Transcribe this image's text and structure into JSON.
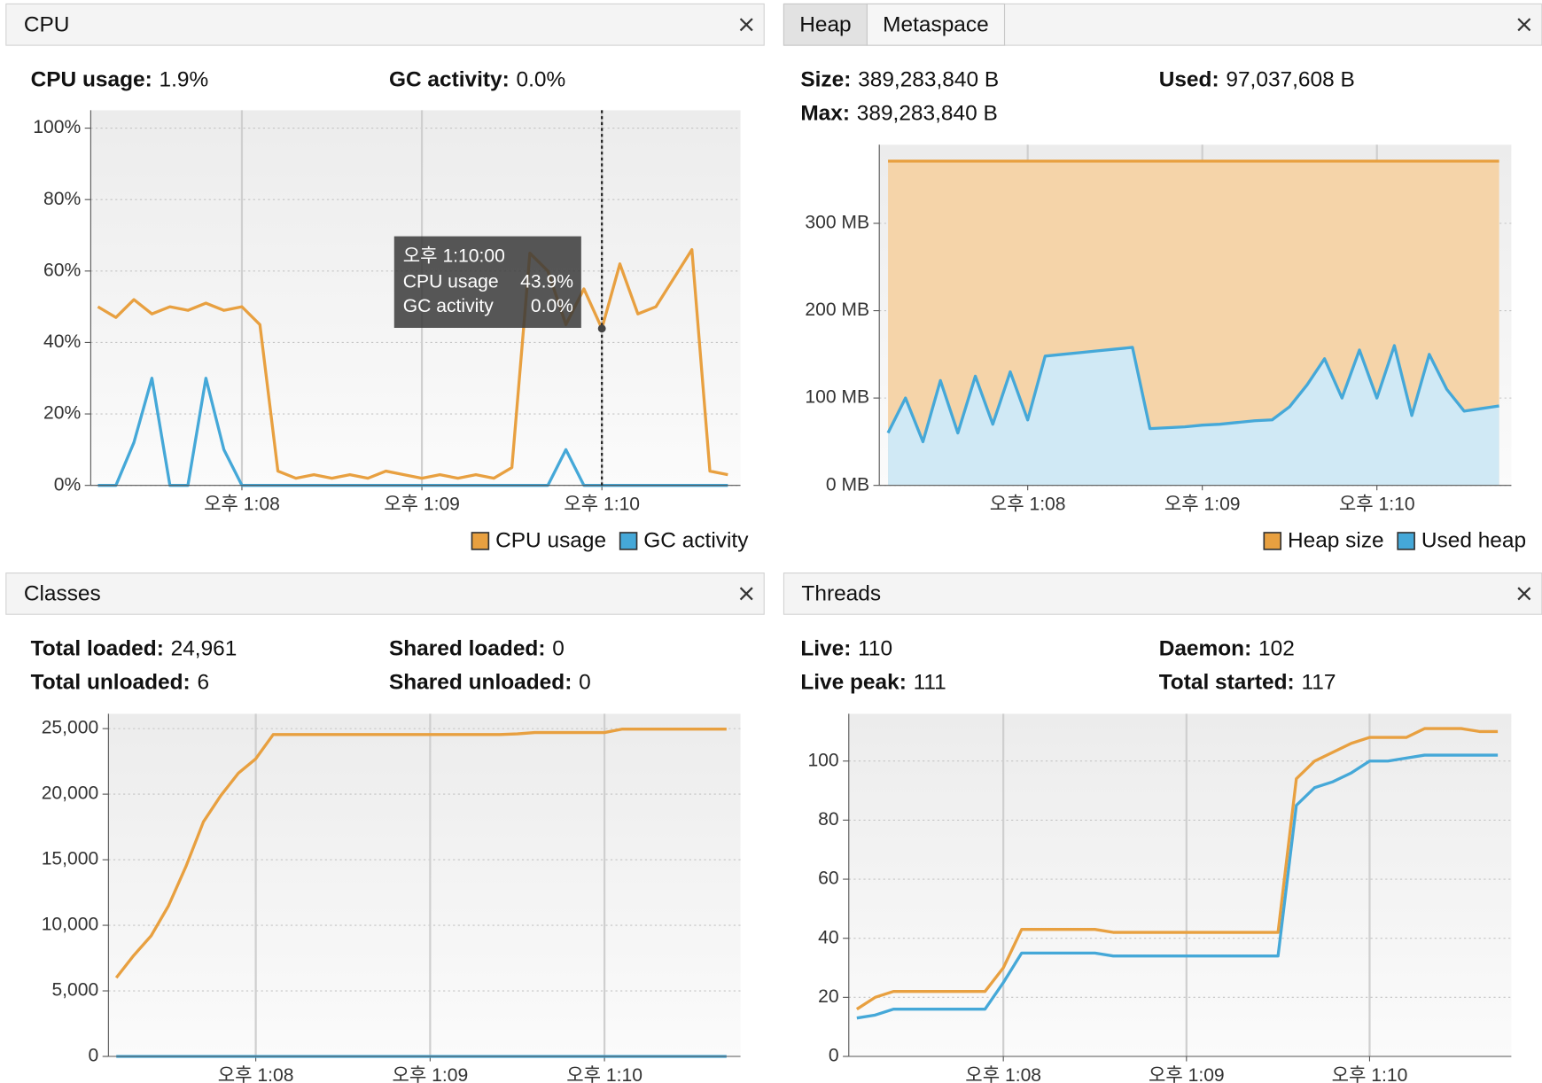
{
  "chart_data": [
    {
      "type": "line",
      "title": "CPU",
      "stats": [
        {
          "label": "CPU usage:",
          "value": "1.9%"
        },
        {
          "label": "GC activity:",
          "value": "0.0%"
        }
      ],
      "x": [
        67.2,
        67.3,
        67.4,
        67.5,
        67.6,
        67.7,
        67.8,
        67.9,
        68,
        68.1,
        68.2,
        68.3,
        68.4,
        68.5,
        68.6,
        68.7,
        68.8,
        68.9,
        69,
        69.1,
        69.2,
        69.3,
        69.4,
        69.5,
        69.6,
        69.7,
        69.8,
        69.9,
        70,
        70.1,
        70.2,
        70.3,
        70.4,
        70.5,
        70.6,
        70.7
      ],
      "series": [
        {
          "name": "CPU usage",
          "color": "#e8a040",
          "values": [
            50,
            47,
            52,
            48,
            50,
            49,
            51,
            49,
            50,
            45,
            4,
            2,
            3,
            2,
            3,
            2,
            4,
            3,
            2,
            3,
            2,
            3,
            2,
            5,
            65,
            60,
            45,
            55,
            43.9,
            62,
            48,
            50,
            58,
            66,
            4,
            3
          ]
        },
        {
          "name": "GC activity",
          "color": "#45a8d8",
          "values": [
            0,
            0,
            12,
            30,
            0,
            0,
            30,
            10,
            0,
            0,
            0,
            0,
            0,
            0,
            0,
            0,
            0,
            0,
            0,
            0,
            0,
            0,
            0,
            0,
            0,
            0,
            10,
            0,
            0,
            0,
            0,
            0,
            0,
            0,
            0,
            0
          ]
        }
      ],
      "xlim": [
        67.16,
        70.77
      ],
      "xticks": [
        {
          "value": 68,
          "label": "오후 1:08"
        },
        {
          "value": 69,
          "label": "오후 1:09"
        },
        {
          "value": 70,
          "label": "오후 1:10"
        }
      ],
      "ylim": [
        0,
        105
      ],
      "yticks": [
        {
          "value": 0,
          "label": "0%"
        },
        {
          "value": 20,
          "label": "20%"
        },
        {
          "value": 40,
          "label": "40%"
        },
        {
          "value": 60,
          "label": "60%"
        },
        {
          "value": 80,
          "label": "80%"
        },
        {
          "value": 100,
          "label": "100%"
        }
      ],
      "grid": true,
      "legend": "bottom-right",
      "tooltip": {
        "x": 70,
        "title": "오후 1:10:00",
        "rows": [
          {
            "name": "CPU usage",
            "value": 43.9,
            "label": "43.9%"
          },
          {
            "name": "GC activity",
            "value": 0,
            "label": "0.0%"
          }
        ]
      }
    },
    {
      "type": "area",
      "tabs": [
        "Heap",
        "Metaspace"
      ],
      "stats": [
        {
          "label": "Size:",
          "value": "389,283,840 B"
        },
        {
          "label": "Used:",
          "value": "97,037,608 B"
        },
        {
          "label": "Max:",
          "value": "389,283,840 B"
        }
      ],
      "x": [
        67.2,
        67.3,
        67.4,
        67.5,
        67.6,
        67.7,
        67.8,
        67.9,
        68,
        68.1,
        68.2,
        68.3,
        68.4,
        68.5,
        68.6,
        68.7,
        68.8,
        68.9,
        69,
        69.1,
        69.2,
        69.3,
        69.4,
        69.5,
        69.6,
        69.7,
        69.8,
        69.9,
        70,
        70.1,
        70.2,
        70.3,
        70.4,
        70.5,
        70.6,
        70.7
      ],
      "series": [
        {
          "name": "Heap size",
          "color": "#e8a040",
          "values": [
            371.25,
            371.25,
            371.25,
            371.25,
            371.25,
            371.25,
            371.25,
            371.25,
            371.25,
            371.25,
            371.25,
            371.25,
            371.25,
            371.25,
            371.25,
            371.25,
            371.25,
            371.25,
            371.25,
            371.25,
            371.25,
            371.25,
            371.25,
            371.25,
            371.25,
            371.25,
            371.25,
            371.25,
            371.25,
            371.25,
            371.25,
            371.25,
            371.25,
            371.25,
            371.25,
            371.25
          ]
        },
        {
          "name": "Used heap",
          "color": "#45a8d8",
          "values": [
            60,
            100,
            50,
            120,
            60,
            125,
            70,
            130,
            75,
            148,
            150,
            152,
            154,
            156,
            158,
            65,
            66,
            67,
            69,
            70,
            72,
            74,
            75,
            90,
            115,
            145,
            100,
            155,
            100,
            160,
            80,
            150,
            110,
            85,
            88,
            91
          ]
        }
      ],
      "xlim": [
        67.15,
        70.77
      ],
      "xticks": [
        {
          "value": 68,
          "label": "오후 1:08"
        },
        {
          "value": 69,
          "label": "오후 1:09"
        },
        {
          "value": 70,
          "label": "오후 1:10"
        }
      ],
      "ylim": [
        0,
        390
      ],
      "yticks": [
        {
          "value": 0,
          "label": "0 MB"
        },
        {
          "value": 100,
          "label": "100 MB"
        },
        {
          "value": 200,
          "label": "200 MB"
        },
        {
          "value": 300,
          "label": "300 MB"
        }
      ],
      "grid": true,
      "legend": "bottom-right"
    },
    {
      "type": "line",
      "title": "Classes",
      "stats": [
        {
          "label": "Total loaded:",
          "value": "24,961"
        },
        {
          "label": "Shared loaded:",
          "value": "0"
        },
        {
          "label": "Total unloaded:",
          "value": "6"
        },
        {
          "label": "Shared unloaded:",
          "value": "0"
        }
      ],
      "x": [
        67.2,
        67.3,
        67.4,
        67.5,
        67.6,
        67.7,
        67.8,
        67.9,
        68,
        68.1,
        68.2,
        68.3,
        68.4,
        68.5,
        68.6,
        68.7,
        68.8,
        68.9,
        69,
        69.1,
        69.2,
        69.3,
        69.4,
        69.5,
        69.6,
        69.7,
        69.8,
        69.9,
        70,
        70.1,
        70.2,
        70.3,
        70.4,
        70.5,
        70.6,
        70.7
      ],
      "series": [
        {
          "color": "#e8a040",
          "values": [
            6000,
            7700,
            9200,
            11500,
            14500,
            17900,
            19900,
            21600,
            22700,
            24550,
            24550,
            24550,
            24550,
            24550,
            24550,
            24550,
            24550,
            24550,
            24550,
            24550,
            24550,
            24550,
            24550,
            24600,
            24700,
            24700,
            24700,
            24700,
            24700,
            24961,
            24961,
            24961,
            24961,
            24961,
            24961,
            24961
          ]
        },
        {
          "color": "#45a8d8",
          "values": [
            0,
            0,
            0,
            0,
            0,
            0,
            0,
            0,
            0,
            0,
            0,
            0,
            0,
            0,
            0,
            0,
            0,
            0,
            0,
            0,
            0,
            0,
            0,
            0,
            0,
            0,
            0,
            0,
            0,
            0,
            0,
            0,
            0,
            0,
            0,
            0
          ]
        }
      ],
      "xlim": [
        67.155,
        70.78
      ],
      "xticks": [
        {
          "value": 68,
          "label": "오후 1:08"
        },
        {
          "value": 69,
          "label": "오후 1:09"
        },
        {
          "value": 70,
          "label": "오후 1:10"
        }
      ],
      "ylim": [
        0,
        26130
      ],
      "yticks": [
        0,
        {
          "value": 5000,
          "label": "5,000"
        },
        {
          "value": 10000,
          "label": "10,000"
        },
        {
          "value": 15000,
          "label": "15,000"
        },
        {
          "value": 20000,
          "label": "20,000"
        },
        {
          "value": 25000,
          "label": "25,000"
        }
      ],
      "grid": true
    },
    {
      "type": "line",
      "title": "Threads",
      "stats": [
        {
          "label": "Live:",
          "value": "110"
        },
        {
          "label": "Daemon:",
          "value": "102"
        },
        {
          "label": "Live peak:",
          "value": "111"
        },
        {
          "label": "Total started:",
          "value": "117"
        }
      ],
      "x": [
        67.2,
        67.3,
        67.4,
        67.5,
        67.6,
        67.7,
        67.8,
        67.9,
        68,
        68.1,
        68.2,
        68.3,
        68.4,
        68.5,
        68.6,
        68.7,
        68.8,
        68.9,
        69,
        69.1,
        69.2,
        69.3,
        69.4,
        69.5,
        69.6,
        69.7,
        69.8,
        69.9,
        70,
        70.1,
        70.2,
        70.3,
        70.4,
        70.5,
        70.6,
        70.7
      ],
      "series": [
        {
          "color": "#e8a040",
          "values": [
            16,
            20,
            22,
            22,
            22,
            22,
            22,
            22,
            30,
            43,
            43,
            43,
            43,
            43,
            42,
            42,
            42,
            42,
            42,
            42,
            42,
            42,
            42,
            42,
            94,
            100,
            103,
            106,
            108,
            108,
            108,
            111,
            111,
            111,
            110,
            110
          ]
        },
        {
          "color": "#45a8d8",
          "values": [
            13,
            14,
            16,
            16,
            16,
            16,
            16,
            16,
            25,
            35,
            35,
            35,
            35,
            35,
            34,
            34,
            34,
            34,
            34,
            34,
            34,
            34,
            34,
            34,
            85,
            91,
            93,
            96,
            100,
            100,
            101,
            102,
            102,
            102,
            102,
            102
          ]
        }
      ],
      "xlim": [
        67.156,
        70.774
      ],
      "xticks": [
        {
          "value": 68,
          "label": "오후 1:08"
        },
        {
          "value": 69,
          "label": "오후 1:09"
        },
        {
          "value": 70,
          "label": "오후 1:10"
        }
      ],
      "ylim": [
        0,
        116
      ],
      "yticks": [
        0,
        20,
        40,
        60,
        80,
        100
      ],
      "grid": true
    }
  ]
}
